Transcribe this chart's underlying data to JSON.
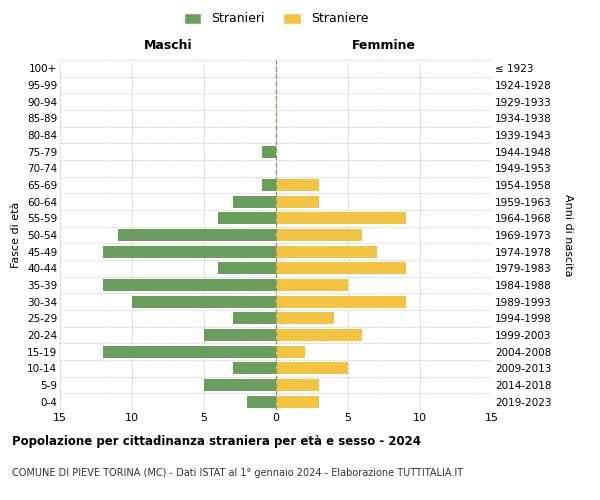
{
  "age_groups": [
    "0-4",
    "5-9",
    "10-14",
    "15-19",
    "20-24",
    "25-29",
    "30-34",
    "35-39",
    "40-44",
    "45-49",
    "50-54",
    "55-59",
    "60-64",
    "65-69",
    "70-74",
    "75-79",
    "80-84",
    "85-89",
    "90-94",
    "95-99",
    "100+"
  ],
  "birth_years": [
    "2019-2023",
    "2014-2018",
    "2009-2013",
    "2004-2008",
    "1999-2003",
    "1994-1998",
    "1989-1993",
    "1984-1988",
    "1979-1983",
    "1974-1978",
    "1969-1973",
    "1964-1968",
    "1959-1963",
    "1954-1958",
    "1949-1953",
    "1944-1948",
    "1939-1943",
    "1934-1938",
    "1929-1933",
    "1924-1928",
    "≤ 1923"
  ],
  "males": [
    2,
    5,
    3,
    12,
    5,
    3,
    10,
    12,
    4,
    12,
    11,
    4,
    3,
    1,
    0,
    1,
    0,
    0,
    0,
    0,
    0
  ],
  "females": [
    3,
    3,
    5,
    2,
    6,
    4,
    9,
    5,
    9,
    7,
    6,
    9,
    3,
    3,
    0,
    0,
    0,
    0,
    0,
    0,
    0
  ],
  "male_color": "#6a9e5e",
  "female_color": "#f5c342",
  "background_color": "#ffffff",
  "grid_color": "#cccccc",
  "title": "Popolazione per cittadinanza straniera per età e sesso - 2024",
  "subtitle": "COMUNE DI PIEVE TORINA (MC) - Dati ISTAT al 1° gennaio 2024 - Elaborazione TUTTITALIA.IT",
  "xlabel_left": "Maschi",
  "xlabel_right": "Femmine",
  "ylabel_left": "Fasce di età",
  "ylabel_right": "Anni di nascita",
  "legend_male": "Stranieri",
  "legend_female": "Straniere",
  "xlim": 15
}
